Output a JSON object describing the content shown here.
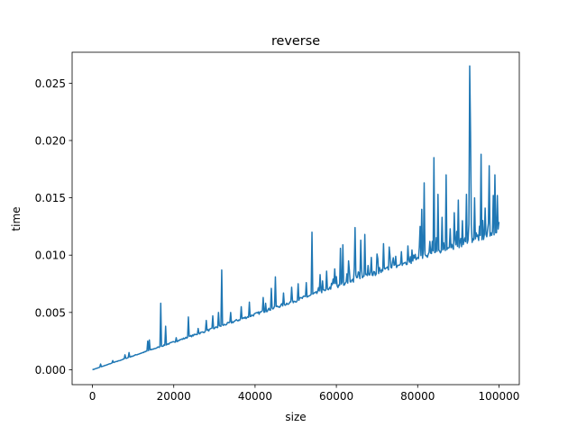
{
  "chart_data": {
    "type": "line",
    "title": "reverse",
    "xlabel": "size",
    "ylabel": "time",
    "xlim": [
      -5000,
      105000
    ],
    "ylim": [
      -0.0013,
      0.0277
    ],
    "xticks": [
      0,
      20000,
      40000,
      60000,
      80000,
      100000
    ],
    "xtick_labels": [
      "0",
      "20000",
      "40000",
      "60000",
      "80000",
      "100000"
    ],
    "yticks": [
      0.0,
      0.005,
      0.01,
      0.015,
      0.02,
      0.025
    ],
    "ytick_labels": [
      "0.000",
      "0.005",
      "0.010",
      "0.015",
      "0.020",
      "0.025"
    ],
    "grid": false,
    "legend": "none",
    "line_color": "#1f77b4",
    "series": [
      {
        "x_step": 200,
        "x_start": 0,
        "baseline_slope_per_unit": 1.18e-07,
        "description_visible": "time grows roughly linearly with size, with many spikes",
        "spikes": [
          [
            2000,
            0.0005
          ],
          [
            5000,
            0.0008
          ],
          [
            8000,
            0.0013
          ],
          [
            9000,
            0.0015
          ],
          [
            13500,
            0.0025
          ],
          [
            14000,
            0.0026
          ],
          [
            16800,
            0.0058
          ],
          [
            18000,
            0.0038
          ],
          [
            20500,
            0.0028
          ],
          [
            23500,
            0.0046
          ],
          [
            26000,
            0.0036
          ],
          [
            28000,
            0.0043
          ],
          [
            29500,
            0.0047
          ],
          [
            31000,
            0.005
          ],
          [
            31800,
            0.0087
          ],
          [
            34000,
            0.005
          ],
          [
            36500,
            0.0055
          ],
          [
            38500,
            0.0059
          ],
          [
            42000,
            0.0063
          ],
          [
            42500,
            0.0058
          ],
          [
            44000,
            0.0071
          ],
          [
            45000,
            0.0081
          ],
          [
            47000,
            0.0067
          ],
          [
            49000,
            0.0072
          ],
          [
            50500,
            0.0075
          ],
          [
            52500,
            0.0076
          ],
          [
            54000,
            0.012
          ],
          [
            56000,
            0.0083
          ],
          [
            57500,
            0.0086
          ],
          [
            59500,
            0.0088
          ],
          [
            61000,
            0.0106
          ],
          [
            61500,
            0.0109
          ],
          [
            63000,
            0.0095
          ],
          [
            64500,
            0.0124
          ],
          [
            66000,
            0.0113
          ],
          [
            67000,
            0.0118
          ],
          [
            68500,
            0.0098
          ],
          [
            70000,
            0.0101
          ],
          [
            71500,
            0.011
          ],
          [
            73000,
            0.0107
          ],
          [
            74500,
            0.0099
          ],
          [
            76000,
            0.0103
          ],
          [
            77500,
            0.0108
          ],
          [
            79000,
            0.01
          ],
          [
            80500,
            0.0125
          ],
          [
            81000,
            0.014
          ],
          [
            81500,
            0.0163
          ],
          [
            83000,
            0.0112
          ],
          [
            84000,
            0.0185
          ],
          [
            85000,
            0.0153
          ],
          [
            86000,
            0.0133
          ],
          [
            87000,
            0.017
          ],
          [
            88000,
            0.0123
          ],
          [
            89000,
            0.0137
          ],
          [
            90000,
            0.0148
          ],
          [
            91000,
            0.013
          ],
          [
            92000,
            0.0153
          ],
          [
            92800,
            0.0265
          ],
          [
            93000,
            0.0208
          ],
          [
            94000,
            0.015
          ],
          [
            95500,
            0.0188
          ],
          [
            96500,
            0.0141
          ],
          [
            97500,
            0.0178
          ],
          [
            98500,
            0.0152
          ],
          [
            99000,
            0.017
          ],
          [
            99500,
            0.0152
          ],
          [
            100000,
            0.0129
          ]
        ]
      }
    ]
  }
}
